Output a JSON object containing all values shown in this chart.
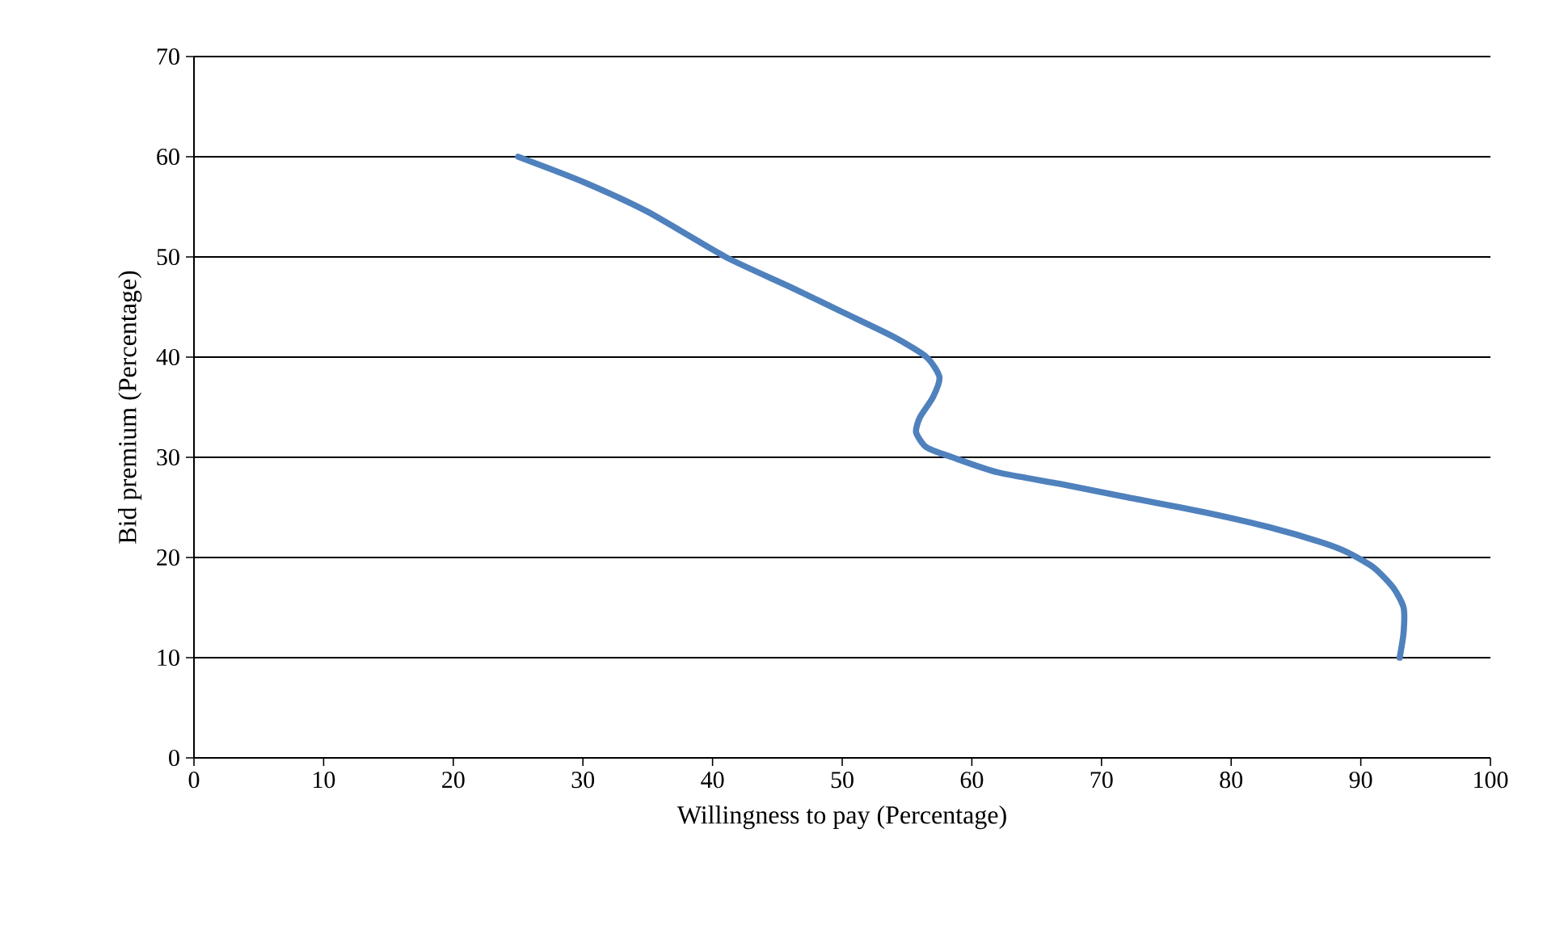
{
  "chart_data": {
    "type": "line",
    "xlabel": "Willingness to  pay (Percentage)",
    "ylabel": "Bid premium (Percentage)",
    "series": [
      {
        "color": "#4f81bd",
        "x": [
          25,
          30,
          35,
          41,
          46,
          50,
          54,
          56.5,
          57.5,
          57,
          56,
          55.7,
          56.5,
          58.5,
          62,
          67,
          72,
          78,
          83,
          87,
          89,
          91,
          92.5,
          93.3,
          93.3,
          93
        ],
        "values": [
          60,
          57.5,
          54.5,
          50,
          47,
          44.5,
          42,
          40,
          38,
          36,
          34,
          32.5,
          31,
          30,
          28.5,
          27.3,
          26,
          24.5,
          23,
          21.5,
          20.5,
          19,
          17,
          15,
          12.5,
          10
        ]
      }
    ],
    "xlim": [
      0,
      100
    ],
    "xticks": [
      0,
      10,
      20,
      30,
      40,
      50,
      60,
      70,
      80,
      90,
      100
    ],
    "ylim": [
      0,
      70
    ],
    "yticks": [
      0,
      10,
      20,
      30,
      40,
      50,
      60,
      70
    ],
    "grid": "y",
    "marker": "none",
    "line_style": "solid"
  }
}
